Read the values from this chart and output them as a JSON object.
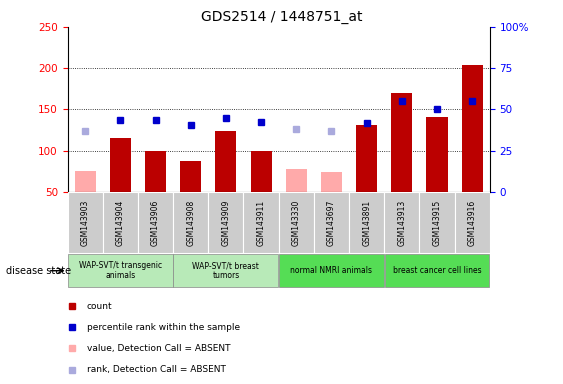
{
  "title": "GDS2514 / 1448751_at",
  "samples": [
    "GSM143903",
    "GSM143904",
    "GSM143906",
    "GSM143908",
    "GSM143909",
    "GSM143911",
    "GSM143330",
    "GSM143697",
    "GSM143891",
    "GSM143913",
    "GSM143915",
    "GSM143916"
  ],
  "count_values": [
    null,
    115,
    100,
    88,
    124,
    100,
    null,
    null,
    131,
    170,
    141,
    204
  ],
  "count_absent": [
    75,
    null,
    null,
    null,
    null,
    null,
    78,
    74,
    null,
    null,
    null,
    null
  ],
  "rank_values": [
    null,
    137,
    137,
    131,
    140,
    135,
    null,
    null,
    133,
    160,
    150,
    160
  ],
  "rank_absent": [
    124,
    null,
    null,
    null,
    null,
    null,
    126,
    124,
    null,
    null,
    null,
    null
  ],
  "groups": [
    {
      "label": "WAP-SVT/t transgenic\nanimals",
      "start": 0,
      "end": 2,
      "color": "#cceecc"
    },
    {
      "label": "WAP-SVT/t breast\ntumors",
      "start": 3,
      "end": 5,
      "color": "#cceecc"
    },
    {
      "label": "normal NMRI animals",
      "start": 6,
      "end": 8,
      "color": "#66dd66"
    },
    {
      "label": "breast cancer cell lines",
      "start": 9,
      "end": 11,
      "color": "#66dd66"
    }
  ],
  "ylim_left": [
    50,
    250
  ],
  "ylim_right": [
    0,
    100
  ],
  "yticks_left": [
    50,
    100,
    150,
    200,
    250
  ],
  "yticks_right": [
    0,
    25,
    50,
    75,
    100
  ],
  "ytick_labels_right": [
    "0",
    "25",
    "50",
    "75",
    "100%"
  ],
  "bar_color": "#bb0000",
  "bar_absent_color": "#ffaaaa",
  "rank_color": "#0000cc",
  "rank_absent_color": "#aaaadd",
  "rank_marker_size": 5,
  "bar_width": 0.6,
  "grid_color": "black",
  "disease_state_label": "disease state",
  "grid_yticks": [
    100,
    150,
    200
  ],
  "sample_box_color": "#cccccc",
  "figure_width": 5.63,
  "figure_height": 3.84,
  "dpi": 100
}
